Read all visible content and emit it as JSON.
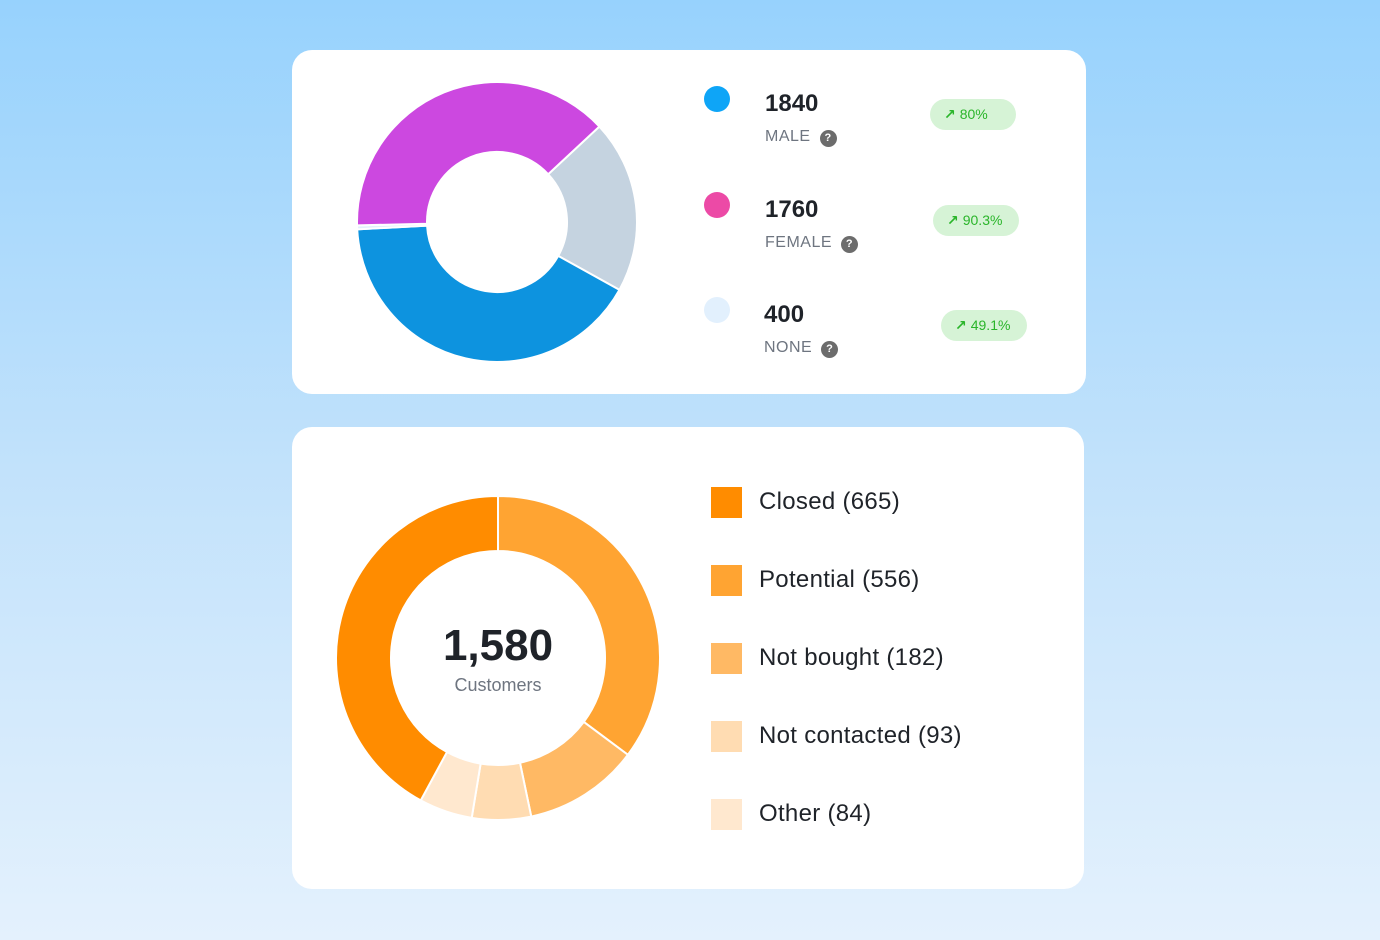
{
  "gender_card": {
    "rows": [
      {
        "value": "1840",
        "label": "MALE",
        "badge": "80%",
        "dot_color": "#0ea5f7"
      },
      {
        "value": "1760",
        "label": "FEMALE",
        "badge": "90.3%",
        "dot_color": "#ec4aa6"
      },
      {
        "value": "400",
        "label": "NONE",
        "badge": "49.1%",
        "dot_color": "#e2f0fd"
      }
    ],
    "help_icon": "question-icon",
    "trend_icon": "arrow-up-right-icon"
  },
  "status_card": {
    "center_value": "1,580",
    "center_label": "Customers",
    "legend": [
      {
        "label": "Closed (665)",
        "color": "#ff8c00"
      },
      {
        "label": "Potential (556)",
        "color": "#ffa432"
      },
      {
        "label": "Not bought (182)",
        "color": "#ffb964"
      },
      {
        "label": "Not contacted (93)",
        "color": "#ffdcb2"
      },
      {
        "label": "Other (84)",
        "color": "#ffe8cf"
      }
    ]
  },
  "chart_data": [
    {
      "type": "pie",
      "variant": "donut",
      "slices": [
        {
          "value": 18,
          "color": "#c5d3e0"
        },
        {
          "value": 37,
          "color": "#0d93df"
        },
        {
          "value": 0.4,
          "color": "#e2f0fd"
        },
        {
          "value": 34.6,
          "color": "#cc48e0"
        }
      ]
    },
    {
      "type": "pie",
      "variant": "donut",
      "slices": [
        {
          "name": "Potential",
          "value": 556,
          "color": "#ffa432"
        },
        {
          "name": "Not bought",
          "value": 182,
          "color": "#ffb964"
        },
        {
          "name": "Not contacted",
          "value": 93,
          "color": "#ffdcb2"
        },
        {
          "name": "Other",
          "value": 84,
          "color": "#ffe8cf"
        },
        {
          "name": "Closed",
          "value": 665,
          "color": "#ff8c00"
        }
      ]
    }
  ]
}
